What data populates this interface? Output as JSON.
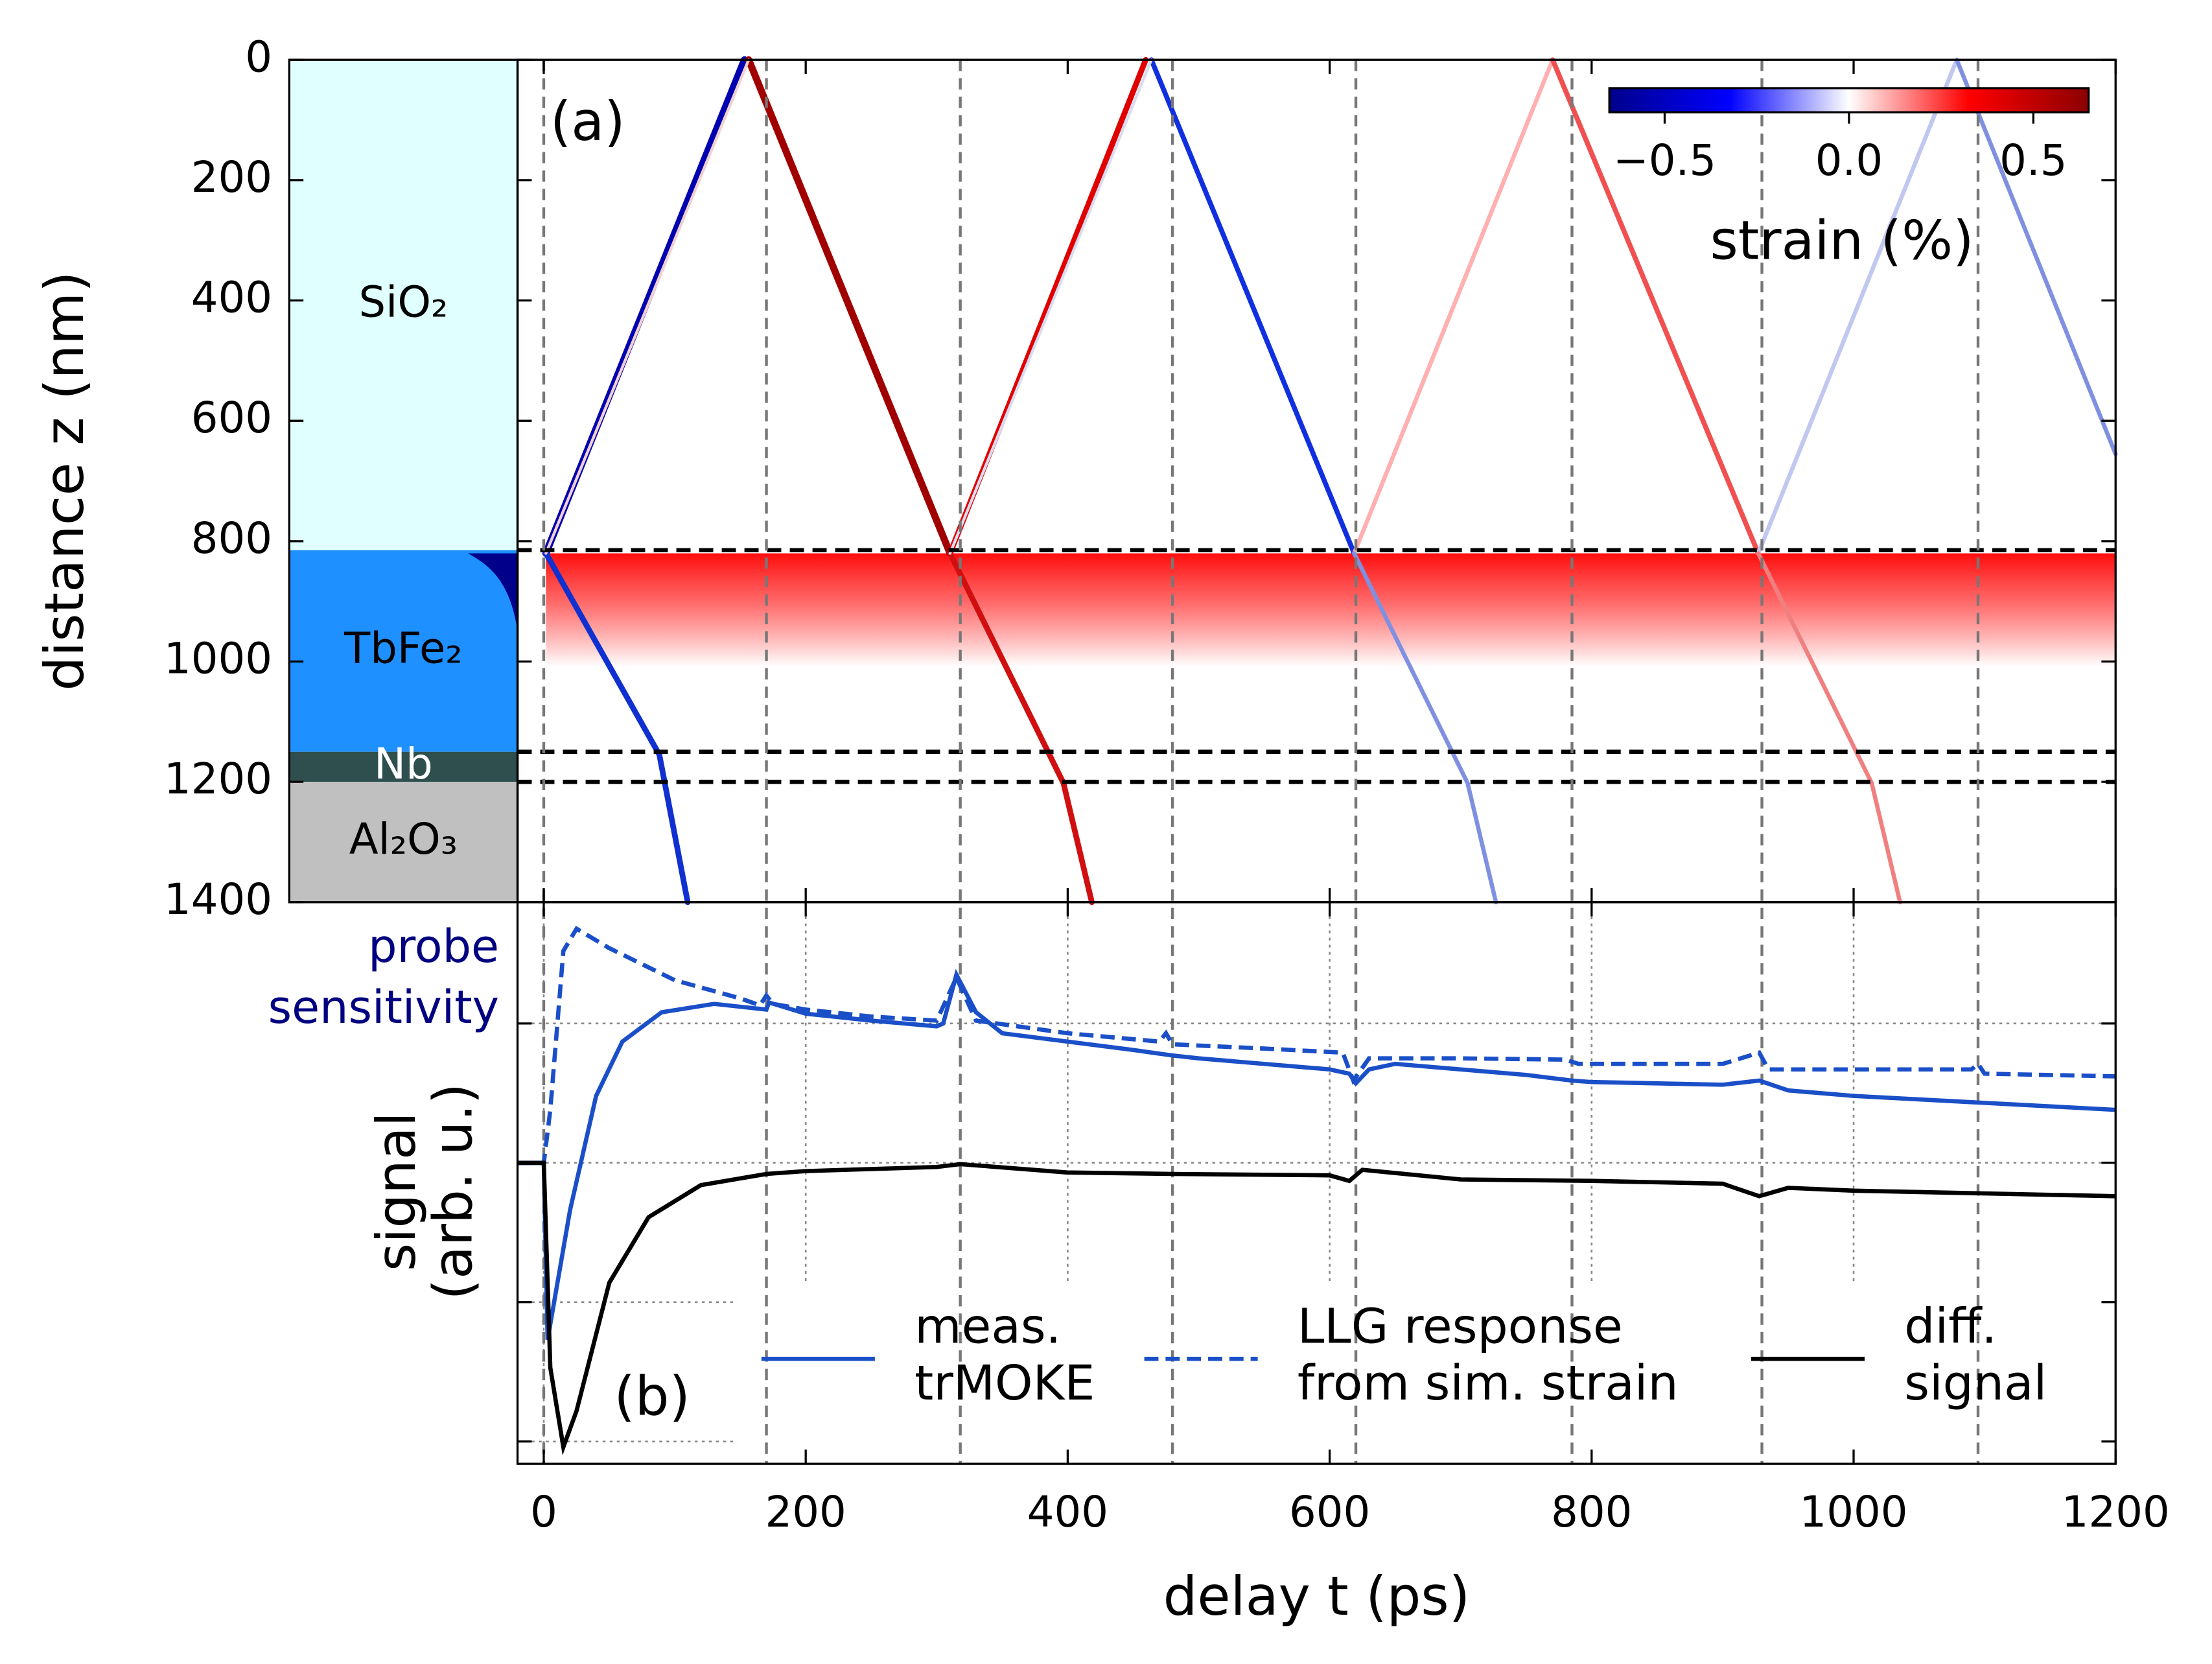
{
  "chart_data": [
    {
      "type": "heatmap",
      "ylabel": "distance z (nm)",
      "ylim": [
        1400,
        0
      ],
      "yticks": [
        0,
        200,
        400,
        600,
        800,
        1000,
        1200,
        1400
      ],
      "annotation": "(a)",
      "layers": [
        {
          "name": "SiO₂",
          "color": "#e0ffff",
          "from": 0,
          "to": 815
        },
        {
          "name": "TbFe₂",
          "color": "#1e90ff",
          "from": 815,
          "to": 1150
        },
        {
          "name": "Nb",
          "color": "#2f4f4f",
          "from": 1150,
          "to": 1200
        },
        {
          "name": "Al₂O₃",
          "color": "#c0c0c0",
          "from": 1200,
          "to": 1400
        }
      ],
      "colorbar": {
        "label": "strain (%)",
        "clim": [
          -0.65,
          0.65
        ],
        "ticks": [
          {
            "value": -0.5,
            "label": "−0.5"
          },
          {
            "value": 0,
            "label": "0.0"
          },
          0.5
        ],
        "colors": [
          "#00008b",
          "#0000ff",
          "#ffffff",
          "#ff0000",
          "#8b0000"
        ]
      }
    },
    {
      "type": "line",
      "xlabel": "delay t (ps)",
      "ylabel": "signal\n(arb. u.)",
      "side_label": "probe\nsensitivity",
      "annotation": "(b)",
      "xlim": [
        -20,
        1200
      ],
      "xticks": [
        0,
        200,
        400,
        600,
        800,
        1000,
        1200
      ],
      "ylim": [
        -2.16,
        1.87
      ],
      "yticks": [
        -2,
        -1,
        0,
        1
      ],
      "vlines": [
        0,
        170,
        318,
        480,
        620,
        785,
        930,
        1095
      ],
      "series": [
        {
          "name": "meas.\ntrMOKE",
          "color": "#1a4fc8",
          "dash": false,
          "x": [
            -20,
            0,
            3,
            20,
            40,
            60,
            90,
            130,
            170,
            172,
            200,
            250,
            300,
            305,
            315,
            330,
            350,
            400,
            450,
            480,
            500,
            550,
            600,
            615,
            620,
            630,
            650,
            700,
            750,
            785,
            800,
            900,
            928,
            950,
            1000,
            1100,
            1200
          ],
          "values": [
            0,
            0,
            -1.27,
            -0.34,
            0.48,
            0.87,
            1.08,
            1.14,
            1.1,
            1.15,
            1.07,
            1.02,
            0.98,
            1.0,
            1.35,
            1.08,
            0.93,
            0.87,
            0.81,
            0.77,
            0.75,
            0.71,
            0.67,
            0.64,
            0.57,
            0.67,
            0.71,
            0.67,
            0.63,
            0.59,
            0.58,
            0.56,
            0.59,
            0.52,
            0.48,
            0.43,
            0.38
          ]
        },
        {
          "name": "LLG response\nfrom sim. strain",
          "color": "#1a4fc8",
          "dash": true,
          "x": [
            -20,
            0,
            5,
            15,
            25,
            50,
            100,
            150,
            165,
            170,
            175,
            200,
            250,
            300,
            315,
            330,
            400,
            470,
            475,
            480,
            550,
            610,
            618,
            630,
            700,
            780,
            790,
            900,
            928,
            935,
            1000,
            1090,
            1095,
            1100,
            1200
          ],
          "values": [
            0,
            0,
            0.38,
            1.52,
            1.68,
            1.54,
            1.31,
            1.18,
            1.13,
            1.2,
            1.14,
            1.1,
            1.05,
            1.02,
            1.33,
            1.02,
            0.93,
            0.87,
            0.93,
            0.85,
            0.82,
            0.79,
            0.59,
            0.75,
            0.75,
            0.74,
            0.71,
            0.71,
            0.79,
            0.67,
            0.67,
            0.67,
            0.71,
            0.64,
            0.62
          ]
        },
        {
          "name": "diff.\nsignal",
          "color": "#000000",
          "dash": false,
          "x": [
            -20,
            0,
            5,
            15,
            25,
            50,
            80,
            120,
            170,
            200,
            300,
            318,
            400,
            480,
            600,
            615,
            625,
            700,
            800,
            900,
            928,
            950,
            1000,
            1200
          ],
          "values": [
            0,
            0,
            -1.47,
            -2.04,
            -1.78,
            -0.86,
            -0.39,
            -0.16,
            -0.08,
            -0.06,
            -0.03,
            -0.01,
            -0.07,
            -0.08,
            -0.09,
            -0.13,
            -0.05,
            -0.12,
            -0.13,
            -0.15,
            -0.24,
            -0.18,
            -0.2,
            -0.24
          ]
        }
      ]
    }
  ]
}
